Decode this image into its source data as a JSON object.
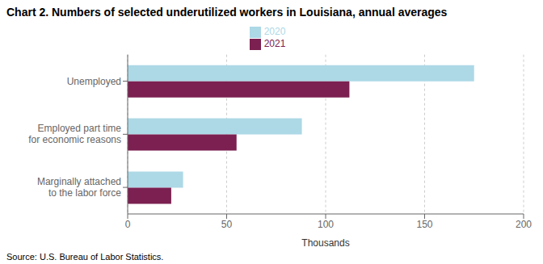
{
  "chart_data": {
    "type": "bar",
    "orientation": "horizontal",
    "title": "Chart 2.  Numbers of selected underutilized workers in Louisiana, annual averages",
    "categories": [
      "Marginally attached\nto the labor force",
      "Employed part time\nfor economic reasons",
      "Unemployed"
    ],
    "series": [
      {
        "name": "2020",
        "color": "#add8e6",
        "values": [
          28,
          88,
          175
        ]
      },
      {
        "name": "2021",
        "color": "#7b2050",
        "values": [
          22,
          55,
          112
        ]
      }
    ],
    "xlim": [
      0,
      200
    ],
    "xticks": [
      0,
      50,
      100,
      150,
      200
    ],
    "xlabel": "Thousands",
    "grid": true,
    "legend": "top",
    "annotations": [
      "Source: U.S. Bureau of Labor Statistics."
    ]
  }
}
